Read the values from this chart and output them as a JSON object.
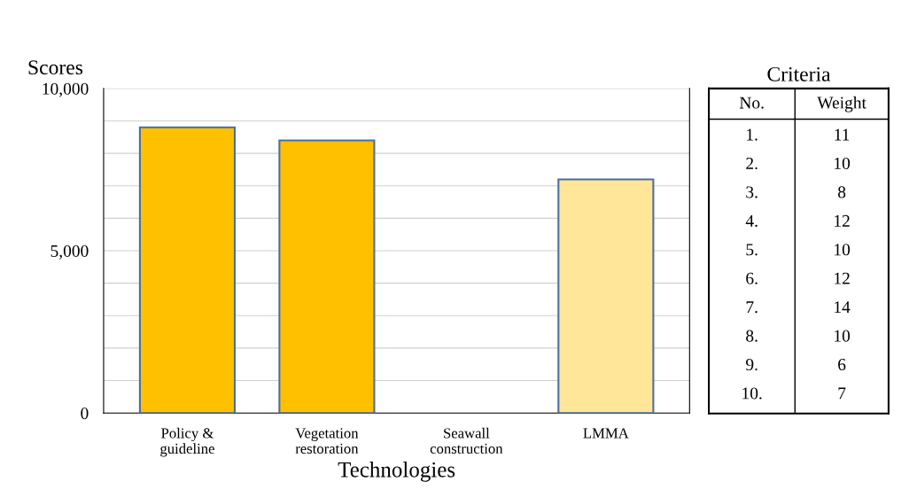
{
  "chart_data": [
    {
      "type": "bar",
      "xlabel": "Technologies",
      "ylabel": "Scores",
      "categories": [
        "Policy &\nguideline",
        "Vegetation\nrestoration",
        "Seawall\nconstruction",
        "LMMA"
      ],
      "values": [
        8800,
        8400,
        null,
        7200
      ],
      "colors": [
        "#ffc000",
        "#ffc000",
        null,
        "#ffe699"
      ],
      "ylim": [
        0,
        10000
      ],
      "yticks": [
        0,
        {
          "value": 1000,
          "label": null
        },
        {
          "value": 2000,
          "label": null
        },
        {
          "value": 3000,
          "label": null
        },
        {
          "value": 4000,
          "label": null
        },
        {
          "value": 5000,
          "label": "5,000"
        },
        {
          "value": 6000,
          "label": null
        },
        {
          "value": 7000,
          "label": null
        },
        {
          "value": 8000,
          "label": null
        },
        {
          "value": 9000,
          "label": null
        },
        {
          "value": 10000,
          "label": "10,000"
        }
      ],
      "grid": "y",
      "legend": false
    },
    {
      "type": "heatmap",
      "title": "Criteria",
      "ylabel": "No.",
      "categories": [
        "Weight"
      ],
      "y_categories": [
        "1.",
        "2.",
        "3.",
        "4.",
        "5.",
        "6.",
        "7.",
        "8.",
        "9.",
        "10."
      ],
      "cells": [
        [
          11
        ],
        [
          10
        ],
        [
          8
        ],
        [
          12
        ],
        [
          10
        ],
        [
          12
        ],
        [
          14
        ],
        [
          10
        ],
        [
          6
        ],
        [
          7
        ]
      ],
      "data_labels": true
    }
  ]
}
